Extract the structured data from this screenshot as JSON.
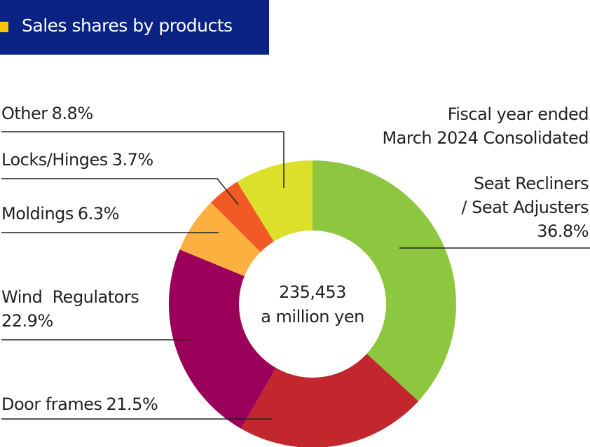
{
  "title": "Sales shares by products",
  "chart_data": {
    "type": "donut",
    "note": "Fiscal year ended\nMarch 2024 Consolidated",
    "center_label": [
      "235,453",
      "a million yen"
    ],
    "categories": [
      "Seat Recliners\n/ Seat Adjusters",
      "Door frames",
      "Wind  Regulators",
      "Moldings",
      "Locks/Hinges",
      "Other"
    ],
    "values": [
      36.8,
      21.5,
      22.9,
      6.3,
      3.7,
      8.8
    ],
    "value_labels": [
      "36.8%",
      "21.5%",
      "22.9%",
      "6.3%",
      "3.7%",
      "8.8%"
    ],
    "colors": [
      "#8dc63f",
      "#c1272d",
      "#9b005a",
      "#fbb040",
      "#f15a24",
      "#dde02a"
    ]
  }
}
